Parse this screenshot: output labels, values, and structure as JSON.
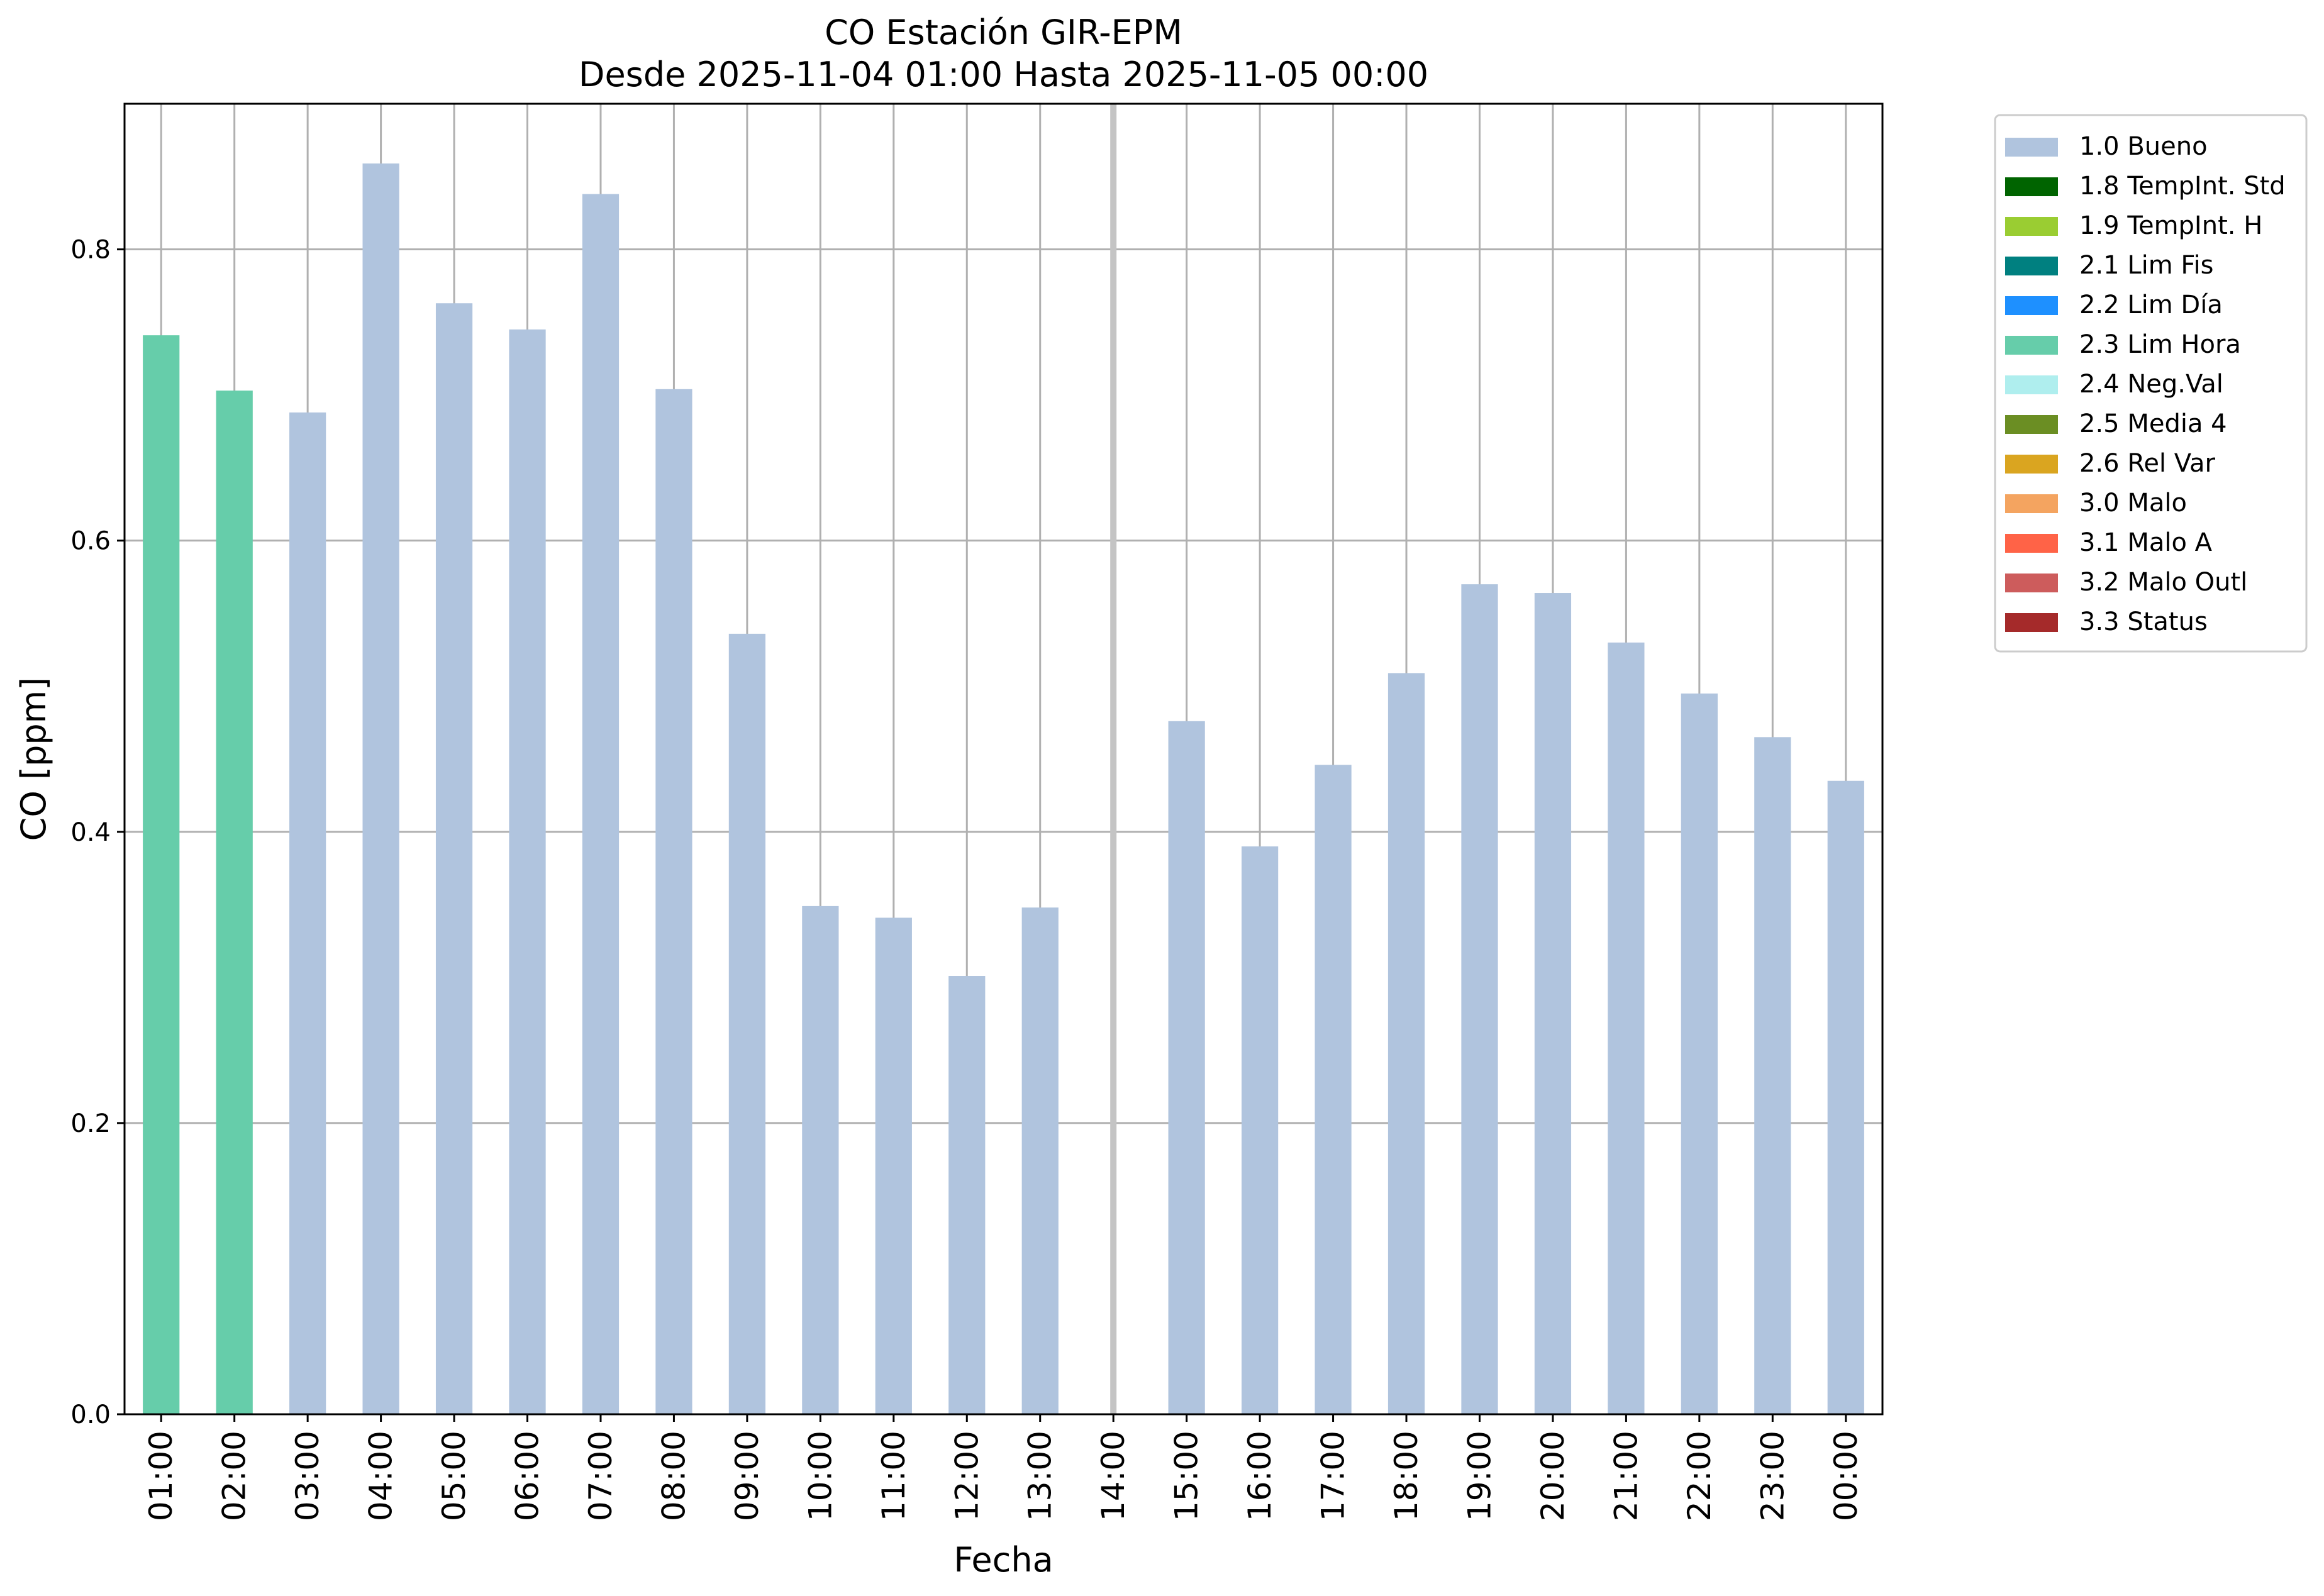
{
  "chart_data": {
    "type": "bar",
    "title": "CO Estación GIR-EPM",
    "subtitle": "Desde 2025-11-04 01:00 Hasta 2025-11-05 00:00",
    "xlabel": "Fecha",
    "ylabel": "CO [ppm]",
    "ylim": [
      0,
      0.9
    ],
    "yticks": [
      0.0,
      0.2,
      0.4,
      0.6,
      0.8
    ],
    "ytick_labels": [
      "0.0",
      "0.2",
      "0.4",
      "0.6",
      "0.8"
    ],
    "grid": true,
    "legend_position": "outside-top-right",
    "categories": [
      "01:00",
      "02:00",
      "03:00",
      "04:00",
      "05:00",
      "06:00",
      "07:00",
      "08:00",
      "09:00",
      "10:00",
      "11:00",
      "12:00",
      "13:00",
      "14:00",
      "15:00",
      "16:00",
      "17:00",
      "18:00",
      "19:00",
      "20:00",
      "21:00",
      "22:00",
      "23:00",
      "00:00"
    ],
    "values": [
      0.741,
      0.703,
      0.688,
      0.859,
      0.763,
      0.745,
      0.838,
      0.704,
      0.536,
      0.349,
      0.341,
      0.301,
      0.348,
      null,
      0.476,
      0.39,
      0.446,
      0.509,
      0.57,
      0.564,
      0.53,
      0.495,
      0.465,
      0.435
    ],
    "flags": [
      "2.3 Lim Hora",
      "2.3 Lim Hora",
      "1.0 Bueno",
      "1.0 Bueno",
      "1.0 Bueno",
      "1.0 Bueno",
      "1.0 Bueno",
      "1.0 Bueno",
      "1.0 Bueno",
      "1.0 Bueno",
      "1.0 Bueno",
      "1.0 Bueno",
      "1.0 Bueno",
      null,
      "1.0 Bueno",
      "1.0 Bueno",
      "1.0 Bueno",
      "1.0 Bueno",
      "1.0 Bueno",
      "1.0 Bueno",
      "1.0 Bueno",
      "1.0 Bueno",
      "1.0 Bueno",
      "1.0 Bueno"
    ],
    "legend": [
      {
        "label": "1.0 Bueno",
        "color": "#b0c4de"
      },
      {
        "label": "1.8 TempInt. Std",
        "color": "#006400"
      },
      {
        "label": "1.9 TempInt. H",
        "color": "#9acd32"
      },
      {
        "label": "2.1 Lim Fis",
        "color": "#008080"
      },
      {
        "label": "2.2 Lim Día",
        "color": "#1e90ff"
      },
      {
        "label": "2.3 Lim Hora",
        "color": "#66cdaa"
      },
      {
        "label": "2.4 Neg.Val",
        "color": "#afeeee"
      },
      {
        "label": "2.5 Media 4",
        "color": "#6b8e23"
      },
      {
        "label": "2.6 Rel Var",
        "color": "#daa520"
      },
      {
        "label": "3.0 Malo",
        "color": "#f4a460"
      },
      {
        "label": "3.1 Malo A",
        "color": "#ff6347"
      },
      {
        "label": "3.2 Malo Outl",
        "color": "#cd5c5c"
      },
      {
        "label": "3.3 Status",
        "color": "#a52a2a"
      }
    ]
  }
}
